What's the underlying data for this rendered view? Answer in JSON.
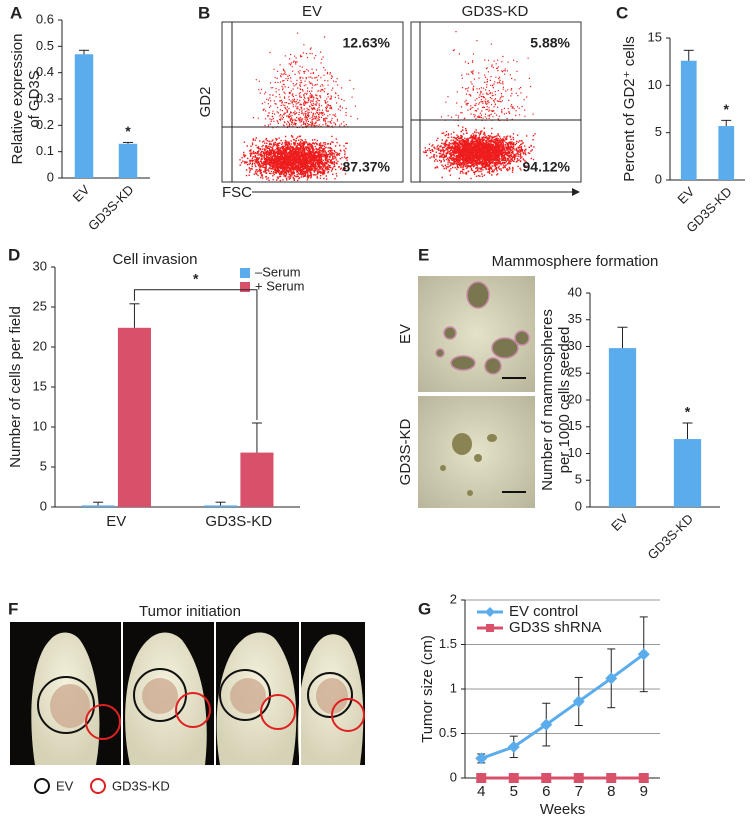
{
  "panel_labels": [
    "A",
    "B",
    "C",
    "D",
    "E",
    "F",
    "G"
  ],
  "chart_data": [
    {
      "type": "bar",
      "ylabel": [
        "Relative expression",
        "of GD3S"
      ],
      "categories": [
        "EV",
        "GD3S-KD"
      ],
      "values": [
        0.47,
        0.13
      ],
      "errors": [
        0.015,
        0.005
      ],
      "color": "#5aacec",
      "annotation": "*",
      "ylim": [
        0,
        0.6
      ],
      "yticks": [
        0,
        0.1,
        0.2,
        0.3,
        0.4,
        0.5,
        0.6
      ]
    },
    {
      "type": "bar",
      "ylabel": [
        "Percent of GD2⁺ cells"
      ],
      "categories": [
        "EV",
        "GD3S-KD"
      ],
      "values": [
        12.6,
        5.7
      ],
      "errors": [
        1.1,
        0.6
      ],
      "color": "#5aacec",
      "annotation": "*",
      "ylim": [
        0,
        15
      ],
      "yticks": [
        0,
        5,
        10,
        15
      ]
    },
    {
      "type": "grouped_bar",
      "title": "Cell invasion",
      "ylabel": [
        "Number of cells per field"
      ],
      "categories": [
        "EV",
        "GD3S-KD"
      ],
      "series": [
        {
          "name": "–Serum",
          "color": "#5aacec",
          "values": [
            0.2,
            0.2
          ],
          "errors": [
            0.4,
            0.4
          ]
        },
        {
          "name": "+ Serum",
          "color": "#d9506a",
          "values": [
            22.4,
            6.8
          ],
          "errors": [
            3.0,
            3.7
          ]
        }
      ],
      "annotation": "*",
      "ylim": [
        0,
        30
      ],
      "yticks": [
        0,
        5,
        10,
        15,
        20,
        25,
        30
      ]
    },
    {
      "type": "bar",
      "ylabel": [
        "Number of mammospheres",
        "per 1000 cells seeded"
      ],
      "categories": [
        "EV",
        "GD3S-KD"
      ],
      "values": [
        29.7,
        12.7
      ],
      "errors": [
        3.9,
        3.0
      ],
      "color": "#5aacec",
      "annotation": "*",
      "ylim": [
        0,
        40
      ],
      "yticks": [
        0,
        5,
        10,
        15,
        20,
        25,
        30,
        35,
        40
      ]
    },
    {
      "type": "line",
      "ylabel": [
        "Tumor size (cm)"
      ],
      "xlabel": "Weeks",
      "x": [
        4,
        5,
        6,
        7,
        8,
        9
      ],
      "series": [
        {
          "name": "EV control",
          "color": "#5aacec",
          "marker": "diamond",
          "values": [
            0.22,
            0.35,
            0.6,
            0.86,
            1.12,
            1.39
          ],
          "errors": [
            0.05,
            0.12,
            0.24,
            0.27,
            0.33,
            0.42
          ]
        },
        {
          "name": "GD3S shRNA",
          "color": "#d9506a",
          "marker": "square",
          "values": [
            0,
            0,
            0,
            0,
            0,
            0
          ]
        }
      ],
      "xlim": [
        3.5,
        9.5
      ],
      "xticks": [
        4,
        5,
        6,
        7,
        8,
        9
      ],
      "ylim": [
        0,
        2
      ],
      "yticks": [
        0,
        0.5,
        1,
        1.5,
        2
      ],
      "grid": true
    }
  ],
  "flow": {
    "ylabel": "GD2",
    "xlabel": "FSC",
    "panels": [
      {
        "title": "EV",
        "upper": "12.63%",
        "lower": "87.37%"
      },
      {
        "title": "GD3S-KD",
        "upper": "5.88%",
        "lower": "94.12%"
      }
    ]
  },
  "mammosphere": {
    "title": "Mammosphere formation",
    "rows": [
      "EV",
      "GD3S-KD"
    ]
  },
  "tumor": {
    "title": "Tumor initiation",
    "legend": [
      "EV",
      "GD3S-KD"
    ]
  }
}
